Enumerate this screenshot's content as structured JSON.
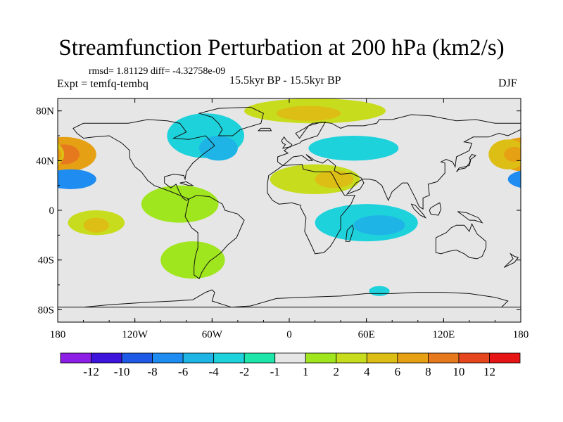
{
  "title": "Streamfunction Perturbation at 200 hPa (km2/s)",
  "stats": "rmsd= 1.81129 diff= -4.32758e-09",
  "expt": "Expt = temfq-tembq",
  "period": "15.5kyr BP - 15.5kyr BP",
  "season": "DJF",
  "map": {
    "projection": "cylindrical-equidistant",
    "lon_range": [
      -180,
      180
    ],
    "lat_range": [
      -90,
      90
    ],
    "x_ticks": [
      {
        "lon": -180,
        "label": "180"
      },
      {
        "lon": -120,
        "label": "120W"
      },
      {
        "lon": -60,
        "label": "60W"
      },
      {
        "lon": 0,
        "label": "0"
      },
      {
        "lon": 60,
        "label": "60E"
      },
      {
        "lon": 120,
        "label": "120E"
      },
      {
        "lon": 180,
        "label": "180"
      }
    ],
    "y_ticks": [
      {
        "lat": 80,
        "label": "80N"
      },
      {
        "lat": 40,
        "label": "40N"
      },
      {
        "lat": 0,
        "label": "0"
      },
      {
        "lat": -40,
        "label": "40S"
      },
      {
        "lat": -80,
        "label": "80S"
      }
    ],
    "background_color": "#e6e6e6"
  },
  "colorbar": {
    "colors": [
      "#8c1ee6",
      "#3c14dc",
      "#1e5ae6",
      "#1e8cf0",
      "#1eb4e6",
      "#1ed2dc",
      "#1ee6aa",
      "#e6e6e6",
      "#a0e61e",
      "#c8dc1e",
      "#dcbe14",
      "#e6a014",
      "#e6781e",
      "#e6461e",
      "#e61414"
    ],
    "labels": [
      "-12",
      "-10",
      "-8",
      "-6",
      "-4",
      "-2",
      "-1",
      "1",
      "2",
      "4",
      "6",
      "8",
      "10",
      "12"
    ]
  },
  "field_blobs": [
    {
      "lon": -175,
      "lat": 45,
      "rx": 25,
      "ry": 14,
      "level": 8
    },
    {
      "lon": -175,
      "lat": 45,
      "rx": 12,
      "ry": 8,
      "level": 10
    },
    {
      "lon": -170,
      "lat": 25,
      "rx": 20,
      "ry": 8,
      "level": -6
    },
    {
      "lon": -150,
      "lat": -10,
      "rx": 22,
      "ry": 10,
      "level": 4
    },
    {
      "lon": -150,
      "lat": -12,
      "rx": 10,
      "ry": 6,
      "level": 6
    },
    {
      "lon": -85,
      "lat": 5,
      "rx": 30,
      "ry": 15,
      "level": 2
    },
    {
      "lon": -75,
      "lat": -40,
      "rx": 25,
      "ry": 15,
      "level": 2
    },
    {
      "lon": -65,
      "lat": 60,
      "rx": 30,
      "ry": 18,
      "level": -2
    },
    {
      "lon": -55,
      "lat": 50,
      "rx": 15,
      "ry": 10,
      "level": -4
    },
    {
      "lon": 20,
      "lat": 80,
      "rx": 55,
      "ry": 10,
      "level": 4
    },
    {
      "lon": 15,
      "lat": 78,
      "rx": 25,
      "ry": 6,
      "level": 6
    },
    {
      "lon": 50,
      "lat": 50,
      "rx": 35,
      "ry": 10,
      "level": -2
    },
    {
      "lon": 20,
      "lat": 25,
      "rx": 35,
      "ry": 12,
      "level": 4
    },
    {
      "lon": 35,
      "lat": 25,
      "rx": 15,
      "ry": 7,
      "level": 6
    },
    {
      "lon": 60,
      "lat": -10,
      "rx": 40,
      "ry": 15,
      "level": -2
    },
    {
      "lon": 70,
      "lat": -12,
      "rx": 20,
      "ry": 8,
      "level": -4
    },
    {
      "lon": 170,
      "lat": 45,
      "rx": 15,
      "ry": 12,
      "level": 6
    },
    {
      "lon": 175,
      "lat": 45,
      "rx": 8,
      "ry": 6,
      "level": 8
    },
    {
      "lon": 70,
      "lat": -65,
      "rx": 8,
      "ry": 4,
      "level": -2
    }
  ]
}
